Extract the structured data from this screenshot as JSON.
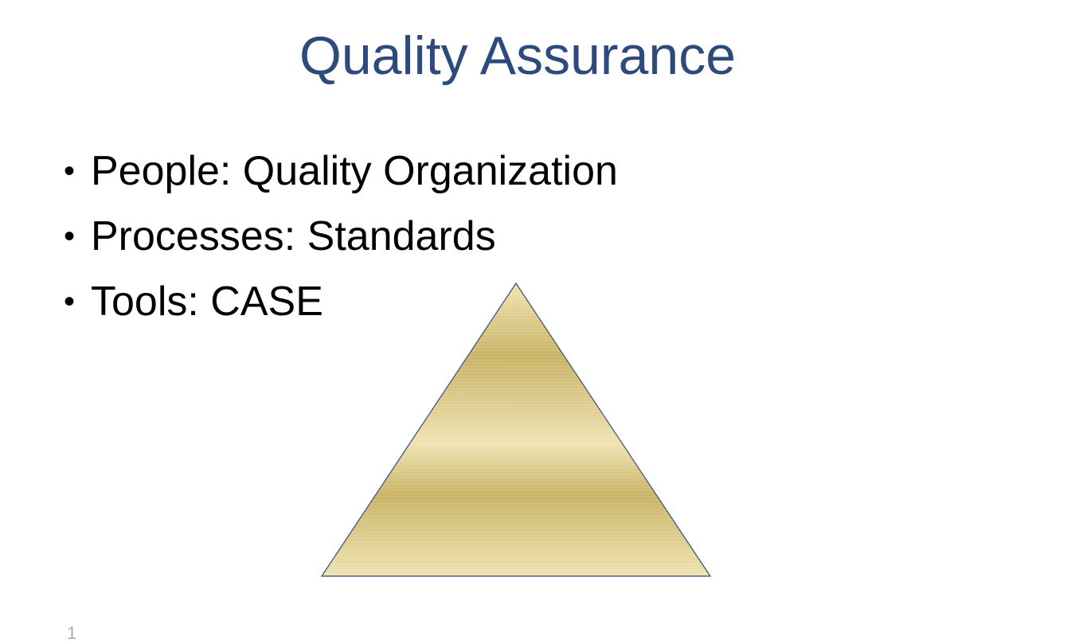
{
  "slide": {
    "title": "Quality Assurance",
    "bullet_glyph": "•",
    "bullets": [
      "People: Quality Organization",
      "Processes: Standards",
      "Tools: CASE"
    ],
    "page_number": "1"
  },
  "colors": {
    "title": "#2e4a7d",
    "text": "#000000",
    "pyramid_stroke": "#2e4a7d",
    "pyramid_fill_light": "#f0e3b2",
    "pyramid_fill_dark": "#c9b466"
  },
  "shapes": {
    "pyramid": "triangle"
  }
}
